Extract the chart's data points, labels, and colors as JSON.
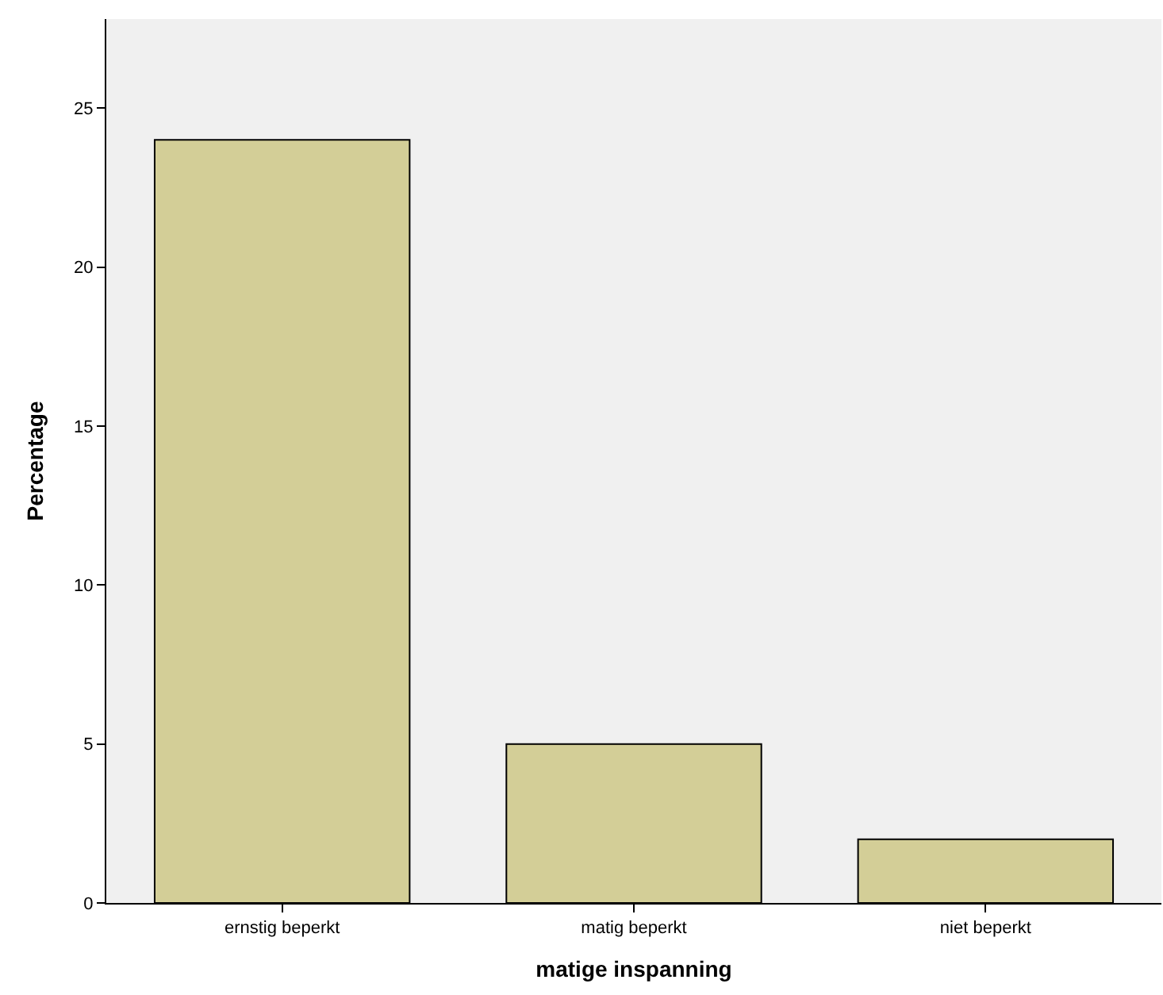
{
  "chart_data": {
    "type": "bar",
    "xlabel": "matige inspanning",
    "ylabel": "Percentage",
    "categories": [
      "ernstig beperkt",
      "matig beperkt",
      "niet beperkt"
    ],
    "values": [
      24,
      5,
      2
    ],
    "color": "#d3ce97",
    "ylim": [
      0,
      27.8
    ],
    "yticks": [
      0,
      5,
      10,
      15,
      20,
      25
    ],
    "grid": false
  }
}
